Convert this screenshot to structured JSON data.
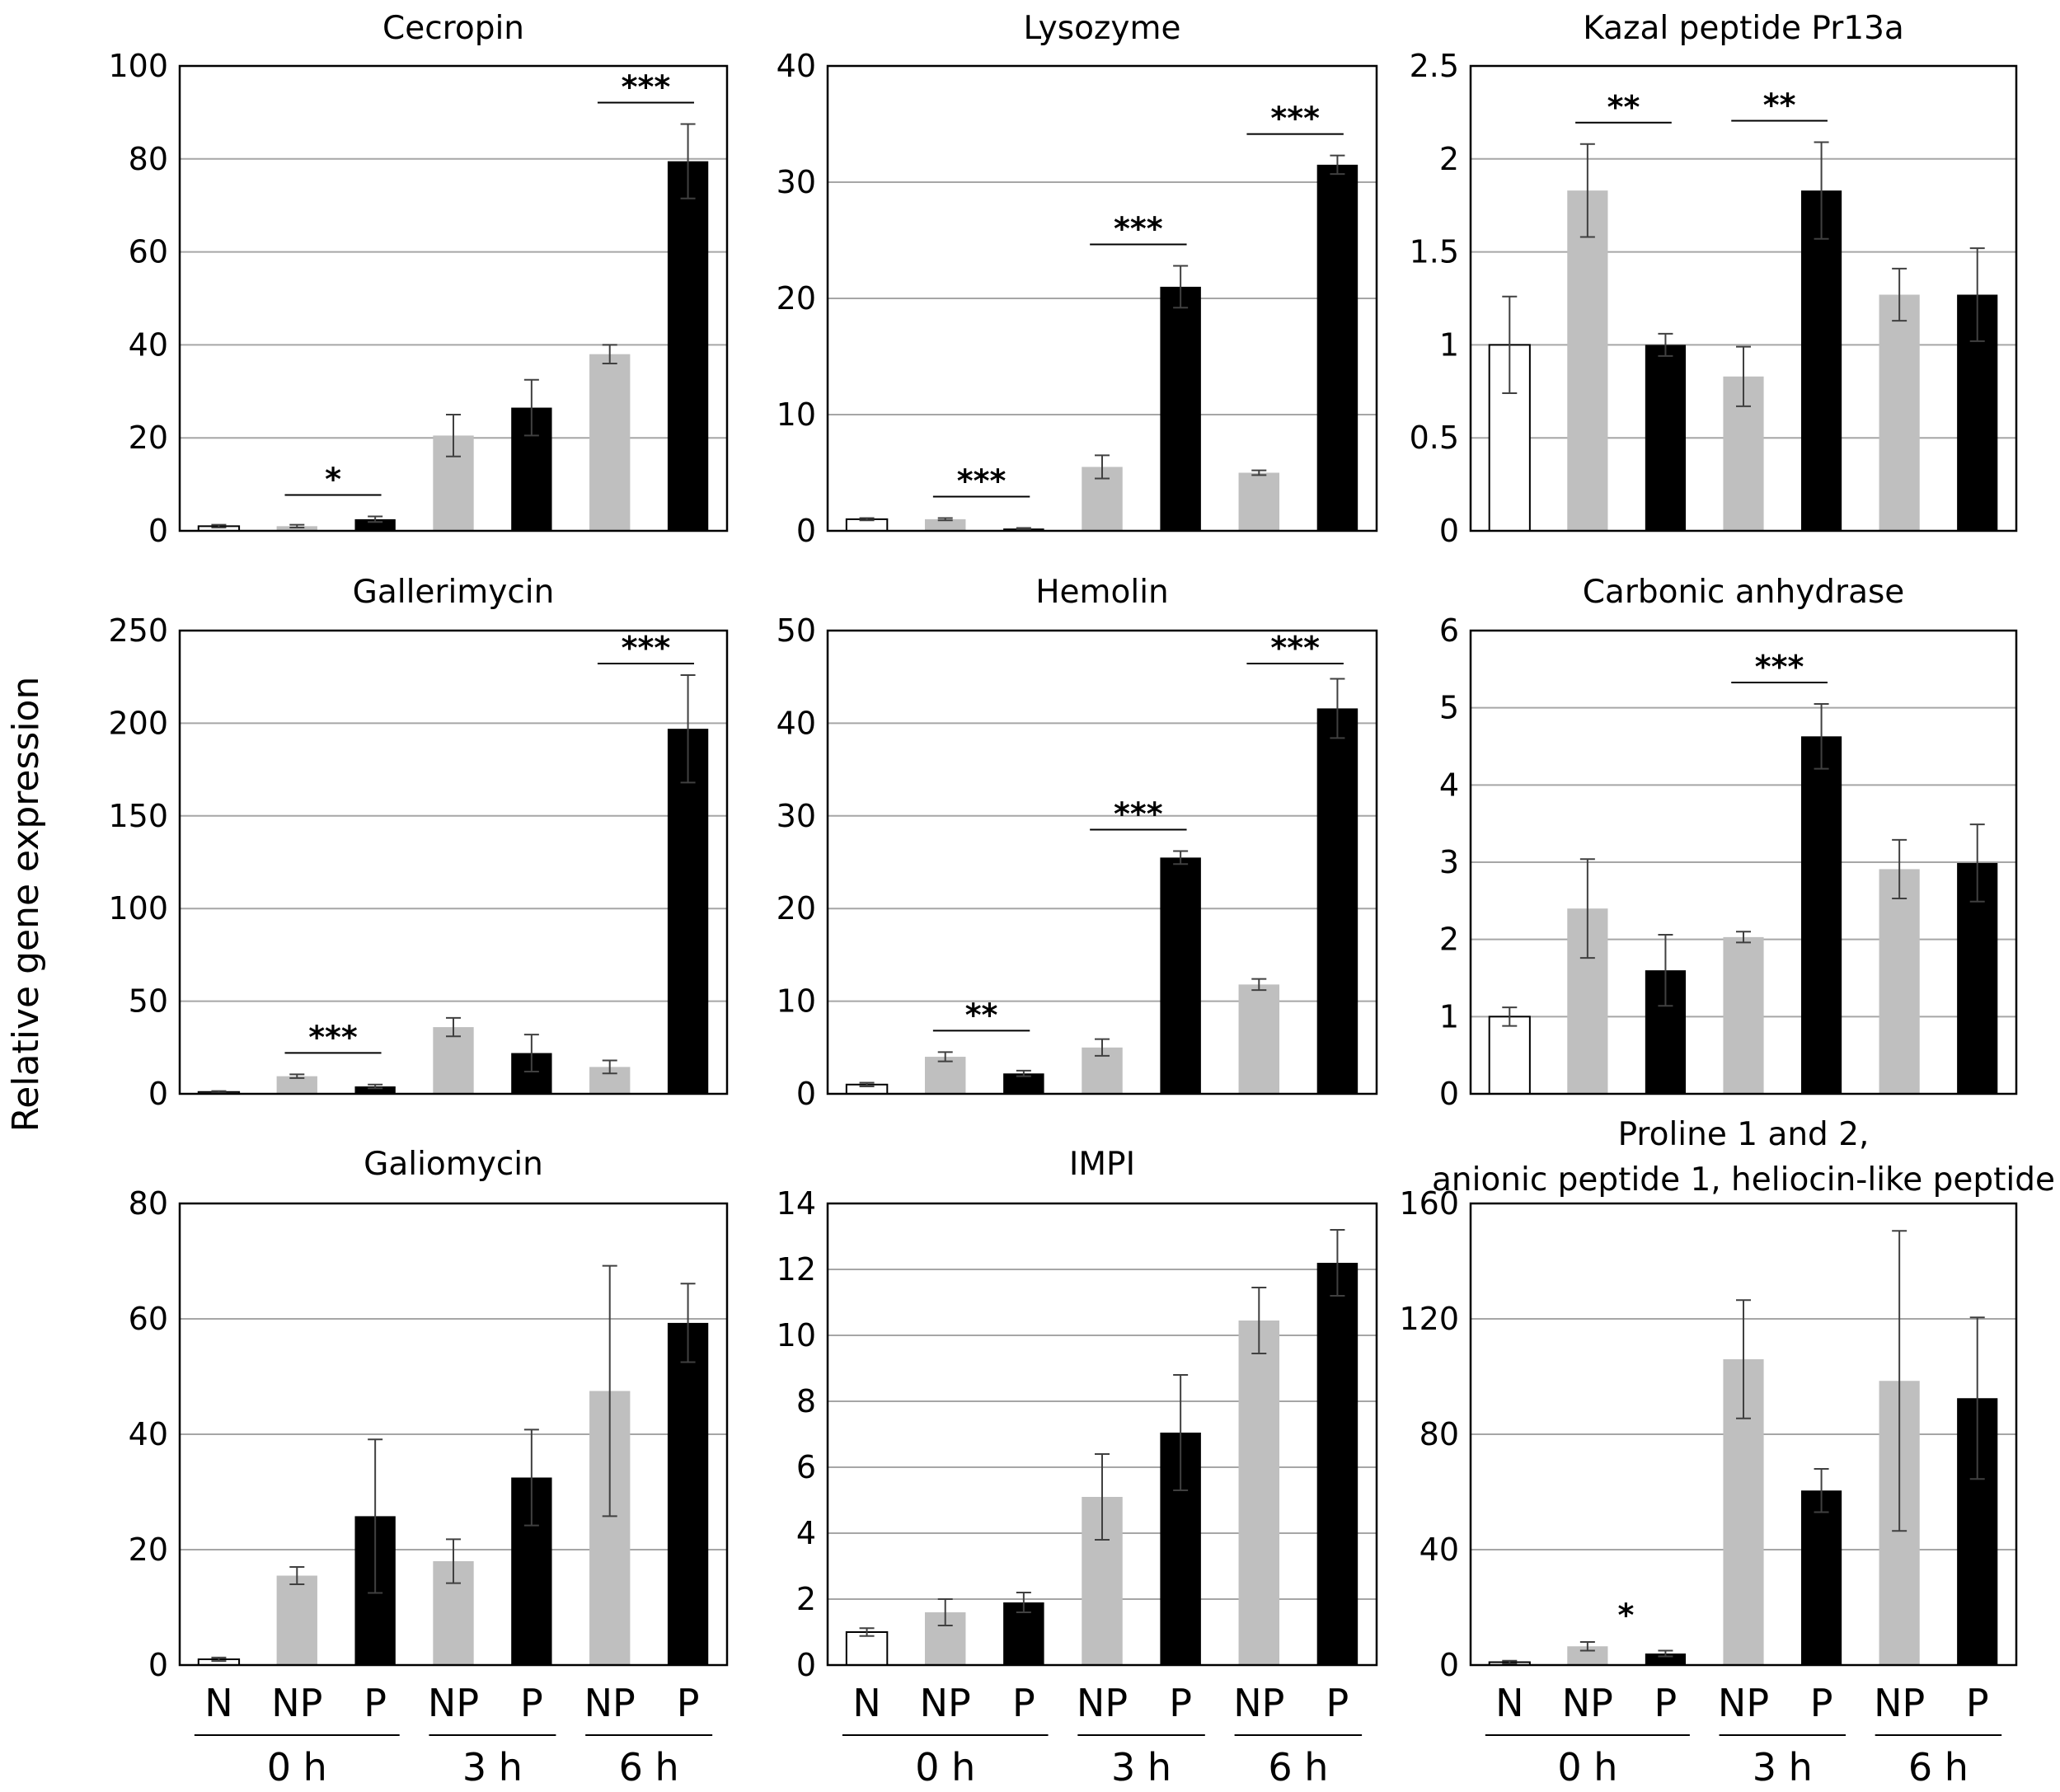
{
  "figure": {
    "ylabel": "Relative gene expression",
    "x_labels": [
      "N",
      "NP",
      "P",
      "NP",
      "P",
      "NP",
      "P"
    ],
    "time_groups": [
      "0 h",
      "3 h",
      "6 h"
    ]
  },
  "colors": {
    "N": "#ffffff",
    "NP": "#bfbfbf",
    "P": "#000000",
    "grid": "#a6a6a6",
    "axis": "#000000"
  },
  "chart_data": [
    {
      "type": "bar",
      "title": "Cecropin",
      "ylim": [
        0,
        100
      ],
      "ticks": [
        "0",
        "20",
        "40",
        "60",
        "80",
        "100"
      ],
      "tick_values": [
        0,
        20,
        40,
        60,
        80,
        100
      ],
      "categories": [
        "N",
        "NP",
        "P",
        "NP",
        "P",
        "NP",
        "P"
      ],
      "values": [
        1,
        1,
        2.5,
        20.5,
        26.5,
        38,
        79.5
      ],
      "errors": [
        0.3,
        0.3,
        0.6,
        4.5,
        6,
        2,
        8
      ],
      "significance": [
        {
          "from": 1,
          "to": 2,
          "label": "*"
        },
        {
          "from": 5,
          "to": 6,
          "label": "***"
        }
      ]
    },
    {
      "type": "bar",
      "title": "Lysozyme",
      "ylim": [
        0,
        40
      ],
      "ticks": [
        "0",
        "10",
        "20",
        "30",
        "40"
      ],
      "tick_values": [
        0,
        10,
        20,
        30,
        40
      ],
      "categories": [
        "N",
        "NP",
        "P",
        "NP",
        "P",
        "NP",
        "P"
      ],
      "values": [
        1,
        1,
        0.2,
        5.5,
        21,
        5,
        31.5
      ],
      "errors": [
        0.1,
        0.1,
        0.05,
        1,
        1.8,
        0.2,
        0.8
      ],
      "significance": [
        {
          "from": 1,
          "to": 2,
          "label": "***"
        },
        {
          "from": 3,
          "to": 4,
          "label": "***"
        },
        {
          "from": 5,
          "to": 6,
          "label": "***"
        }
      ]
    },
    {
      "type": "bar",
      "title": "Kazal peptide Pr13a",
      "ylim": [
        0,
        2.5
      ],
      "ticks": [
        "0",
        "0.5",
        "1",
        "1.5",
        "2",
        "2.5"
      ],
      "tick_values": [
        0,
        0.5,
        1,
        1.5,
        2,
        2.5
      ],
      "categories": [
        "N",
        "NP",
        "P",
        "NP",
        "P",
        "NP",
        "P"
      ],
      "values": [
        1,
        1.83,
        1,
        0.83,
        1.83,
        1.27,
        1.27
      ],
      "errors": [
        0.26,
        0.25,
        0.06,
        0.16,
        0.26,
        0.14,
        0.25
      ],
      "significance": [
        {
          "from": 1,
          "to": 2,
          "label": "**"
        },
        {
          "from": 3,
          "to": 4,
          "label": "**"
        }
      ]
    },
    {
      "type": "bar",
      "title": "Gallerimycin",
      "ylim": [
        0,
        250
      ],
      "ticks": [
        "0",
        "50",
        "100",
        "150",
        "200",
        "250"
      ],
      "tick_values": [
        0,
        50,
        100,
        150,
        200,
        250
      ],
      "categories": [
        "N",
        "NP",
        "P",
        "NP",
        "P",
        "NP",
        "P"
      ],
      "values": [
        1,
        9.5,
        4,
        36,
        22,
        14.5,
        197
      ],
      "errors": [
        0.5,
        1,
        1,
        5,
        10,
        3.5,
        29
      ],
      "significance": [
        {
          "from": 1,
          "to": 2,
          "label": "***"
        },
        {
          "from": 5,
          "to": 6,
          "label": "***"
        }
      ]
    },
    {
      "type": "bar",
      "title": "Hemolin",
      "ylim": [
        0,
        50
      ],
      "ticks": [
        "0",
        "10",
        "20",
        "30",
        "40",
        "50"
      ],
      "tick_values": [
        0,
        10,
        20,
        30,
        40,
        50
      ],
      "categories": [
        "N",
        "NP",
        "P",
        "NP",
        "P",
        "NP",
        "P"
      ],
      "values": [
        1,
        4,
        2.2,
        5,
        25.5,
        11.8,
        41.6
      ],
      "errors": [
        0.2,
        0.5,
        0.3,
        0.9,
        0.7,
        0.6,
        3.2
      ],
      "significance": [
        {
          "from": 1,
          "to": 2,
          "label": "**"
        },
        {
          "from": 3,
          "to": 4,
          "label": "***"
        },
        {
          "from": 5,
          "to": 6,
          "label": "***"
        }
      ]
    },
    {
      "type": "bar",
      "title": "Carbonic anhydrase",
      "ylim": [
        0,
        6
      ],
      "ticks": [
        "0",
        "1",
        "2",
        "3",
        "4",
        "5",
        "6"
      ],
      "tick_values": [
        0,
        1,
        2,
        3,
        4,
        5,
        6
      ],
      "categories": [
        "N",
        "NP",
        "P",
        "NP",
        "P",
        "NP",
        "P"
      ],
      "values": [
        1,
        2.4,
        1.6,
        2.03,
        4.63,
        2.91,
        2.99
      ],
      "errors": [
        0.12,
        0.64,
        0.46,
        0.07,
        0.42,
        0.38,
        0.5
      ],
      "significance": [
        {
          "from": 3,
          "to": 4,
          "label": "***"
        }
      ]
    },
    {
      "type": "bar",
      "title": "Galiomycin",
      "ylim": [
        0,
        80
      ],
      "ticks": [
        "0",
        "20",
        "40",
        "60",
        "80"
      ],
      "tick_values": [
        0,
        20,
        40,
        60,
        80
      ],
      "categories": [
        "N",
        "NP",
        "P",
        "NP",
        "P",
        "NP",
        "P"
      ],
      "values": [
        1,
        15.5,
        25.8,
        18,
        32.5,
        47.5,
        59.3
      ],
      "errors": [
        0.3,
        1.5,
        13.3,
        3.8,
        8.3,
        21.7,
        6.8
      ],
      "significance": []
    },
    {
      "type": "bar",
      "title": "IMPI",
      "ylim": [
        0,
        14
      ],
      "ticks": [
        "0",
        "2",
        "4",
        "6",
        "8",
        "10",
        "12",
        "14"
      ],
      "tick_values": [
        0,
        2,
        4,
        6,
        8,
        10,
        12,
        14
      ],
      "categories": [
        "N",
        "NP",
        "P",
        "NP",
        "P",
        "NP",
        "P"
      ],
      "values": [
        1,
        1.6,
        1.9,
        5.1,
        7.05,
        10.45,
        12.2
      ],
      "errors": [
        0.12,
        0.4,
        0.3,
        1.3,
        1.75,
        1,
        1
      ],
      "significance": []
    },
    {
      "type": "bar",
      "title": "Proline 1 and  2,",
      "title_line2": "anionic peptide 1, heliocin-like peptide",
      "ylim": [
        0,
        160
      ],
      "ticks": [
        "0",
        "40",
        "80",
        "120",
        "160"
      ],
      "tick_values": [
        0,
        40,
        80,
        120,
        160
      ],
      "categories": [
        "N",
        "NP",
        "P",
        "NP",
        "P",
        "NP",
        "P"
      ],
      "values": [
        1,
        6.5,
        4,
        106,
        60.5,
        98.5,
        92.5
      ],
      "errors": [
        0.5,
        1.5,
        1,
        20.5,
        7.5,
        52,
        28
      ],
      "significance": [
        {
          "at": 2,
          "label": "*"
        }
      ]
    }
  ]
}
